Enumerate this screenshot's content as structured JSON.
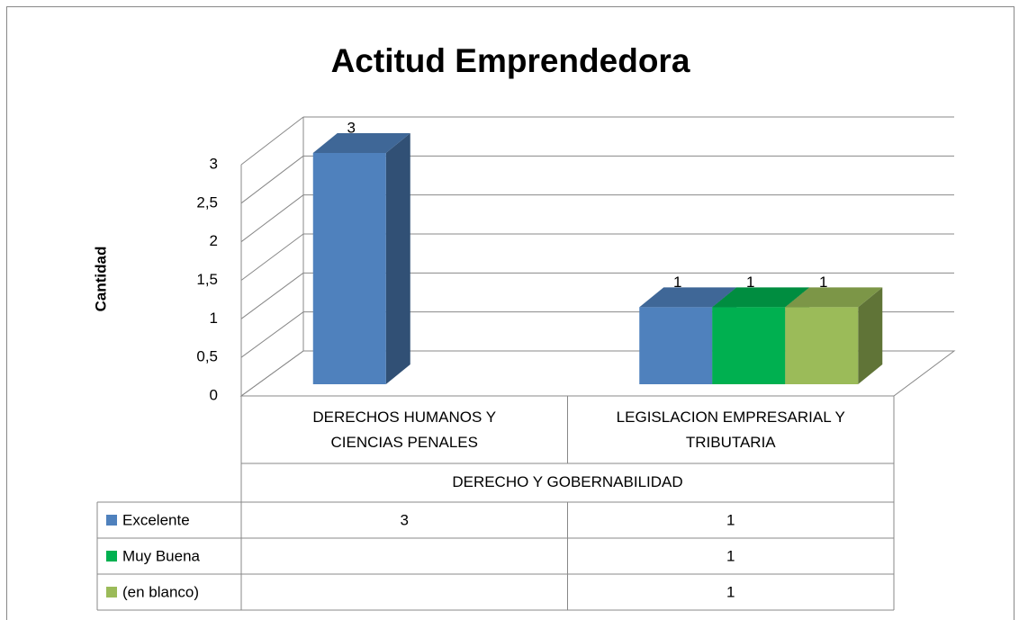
{
  "chart_data": {
    "type": "bar3d",
    "title": "Actitud Emprendedora",
    "y_label": "Cantidad",
    "categories": [
      "DERECHOS HUMANOS Y CIENCIAS PENALES",
      "LEGISLACION EMPRESARIAL Y TRIBUTARIA"
    ],
    "category_group": "DERECHO Y GOBERNABILIDAD",
    "series": [
      {
        "name": "Excelente",
        "color": "#4f81bd",
        "values": [
          3,
          1
        ]
      },
      {
        "name": "Muy Buena",
        "color": "#00b050",
        "values": [
          null,
          1
        ]
      },
      {
        "name": "(en blanco)",
        "color": "#9bbb59",
        "values": [
          null,
          1
        ]
      }
    ],
    "ylim": [
      0,
      3
    ],
    "yticks": [
      0,
      {
        "value": 0.5,
        "label": "0,5"
      },
      1,
      {
        "value": 1.5,
        "label": "1,5"
      },
      2,
      {
        "value": 2.5,
        "label": "2,5"
      },
      3
    ],
    "grid": true,
    "data_table": true
  }
}
